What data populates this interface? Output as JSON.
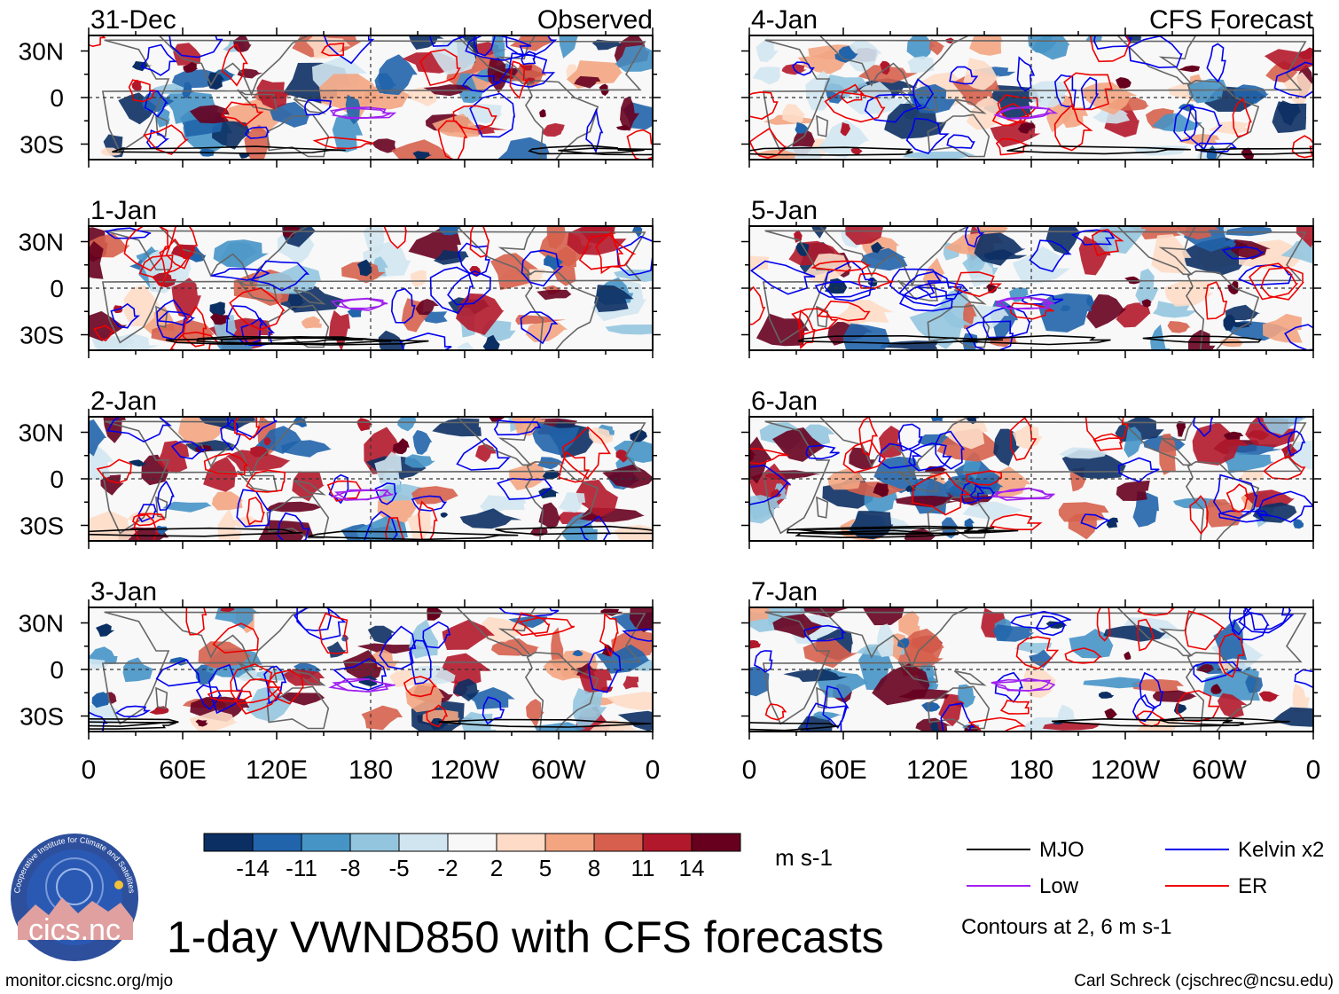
{
  "chart_data": {
    "type": "heatmap",
    "title": "1-day VWND850 with CFS forecasts",
    "variable": "VWND850",
    "units": "m s-1",
    "columns": [
      {
        "label": "Observed",
        "dates": [
          "31-Dec",
          "1-Jan",
          "2-Jan",
          "3-Jan"
        ]
      },
      {
        "label": "CFS Forecast",
        "dates": [
          "4-Jan",
          "5-Jan",
          "6-Jan",
          "7-Jan"
        ]
      }
    ],
    "x_ticks": [
      "0",
      "60E",
      "120E",
      "180",
      "120W",
      "60W",
      "0"
    ],
    "x_range": [
      0,
      360
    ],
    "y_ticks": [
      "30N",
      "0",
      "30S"
    ],
    "y_range": [
      -40,
      40
    ],
    "colorbar": {
      "ticks": [
        "-14",
        "-11",
        "-8",
        "-5",
        "-2",
        "2",
        "5",
        "8",
        "11",
        "14"
      ],
      "colors": [
        "#0c2f63",
        "#2164ab",
        "#4694c6",
        "#93c5df",
        "#d1e5f0",
        "#f8f8f8",
        "#fddbc7",
        "#f3a582",
        "#d6604d",
        "#b2182b",
        "#67001f"
      ]
    },
    "legend": {
      "entries": [
        {
          "label": "MJO",
          "color": "#000000"
        },
        {
          "label": "Kelvin x2",
          "color": "#0000ee"
        },
        {
          "label": "Low",
          "color": "#a020f0"
        },
        {
          "label": "ER",
          "color": "#ee0000"
        }
      ],
      "note": "Contours at 2, 6 m s-1"
    }
  },
  "footer": {
    "logo_text": "cics.nc",
    "logo_ring_text": "Cooperative Institute for Climate and Satellites",
    "url": "monitor.cicsnc.org/mjo",
    "credit": "Carl Schreck (cjschrec@ncsu.edu)"
  }
}
